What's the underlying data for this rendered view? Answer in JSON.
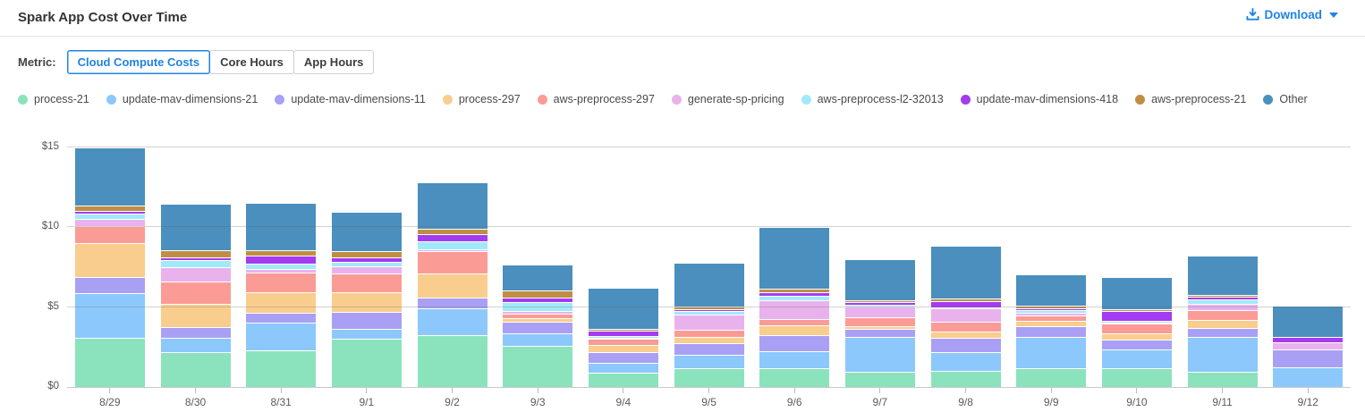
{
  "header": {
    "title": "Spark App Cost Over Time",
    "download_label": "Download"
  },
  "metric": {
    "label": "Metric:",
    "options": [
      {
        "label": "Cloud Compute Costs",
        "selected": true
      },
      {
        "label": "Core Hours",
        "selected": false
      },
      {
        "label": "App Hours",
        "selected": false
      }
    ]
  },
  "colors": {
    "accent": "#2083e4",
    "grid": "#d4d4d4",
    "axis": "#c9c9c9"
  },
  "chart_data": {
    "type": "bar",
    "stacked": true,
    "title": "Spark App Cost Over Time",
    "xlabel": "",
    "ylabel": "",
    "ylim": [
      0,
      15.1
    ],
    "grid": true,
    "legend_position": "top",
    "y_ticks": [
      {
        "value": 0,
        "label": "$0"
      },
      {
        "value": 5,
        "label": "$5"
      },
      {
        "value": 10,
        "label": "$10"
      },
      {
        "value": 15,
        "label": "$15"
      }
    ],
    "categories": [
      "8/29",
      "8/30",
      "8/31",
      "9/1",
      "9/2",
      "9/3",
      "9/4",
      "9/5",
      "9/6",
      "9/7",
      "9/8",
      "9/9",
      "9/10",
      "9/11",
      "9/12"
    ],
    "series": [
      {
        "name": "process-21",
        "color": "#8be3bd",
        "values": [
          3.1,
          2.2,
          2.3,
          3.0,
          3.25,
          2.55,
          0.9,
          1.15,
          1.2,
          0.95,
          1.0,
          1.15,
          1.15,
          0.95,
          0
        ]
      },
      {
        "name": "update-mav-dimensions-21",
        "color": "#8cc8fb",
        "values": [
          2.8,
          0.9,
          1.75,
          0.65,
          1.65,
          0.8,
          0.6,
          0.85,
          1.05,
          2.2,
          1.2,
          2.0,
          1.2,
          2.2,
          1.25
        ]
      },
      {
        "name": "update-mav-dimensions-11",
        "color": "#a9a0f5",
        "values": [
          1.0,
          0.65,
          0.6,
          1.05,
          0.7,
          0.75,
          0.7,
          0.75,
          1.0,
          0.5,
          0.9,
          0.65,
          0.6,
          0.55,
          1.1
        ]
      },
      {
        "name": "process-297",
        "color": "#f9cd8d",
        "values": [
          2.1,
          1.45,
          1.3,
          1.25,
          1.5,
          0.2,
          0.45,
          0.4,
          0.6,
          0.15,
          0.35,
          0.35,
          0.4,
          0.5,
          0
        ]
      },
      {
        "name": "aws-preprocess-297",
        "color": "#fb9b96",
        "values": [
          1.1,
          1.4,
          1.2,
          1.15,
          1.4,
          0.3,
          0.35,
          0.45,
          0.4,
          0.55,
          0.65,
          0.35,
          0.6,
          0.6,
          0
        ]
      },
      {
        "name": "generate-sp-pricing",
        "color": "#e9b2ec",
        "values": [
          0.4,
          0.9,
          0.25,
          0.45,
          0.15,
          0.15,
          0.1,
          0.95,
          1.2,
          0.7,
          0.8,
          0.15,
          0.1,
          0.4,
          0.45
        ]
      },
      {
        "name": "aws-preprocess-l2-32013",
        "color": "#a0e9fa",
        "values": [
          0.35,
          0.45,
          0.3,
          0.3,
          0.45,
          0.55,
          0.1,
          0.2,
          0.25,
          0.1,
          0.1,
          0.15,
          0.1,
          0.3,
          0
        ]
      },
      {
        "name": "update-mav-dimensions-418",
        "color": "#a43bf0",
        "values": [
          0.2,
          0.15,
          0.55,
          0.25,
          0.5,
          0.3,
          0.35,
          0.1,
          0.25,
          0.15,
          0.4,
          0.15,
          0.6,
          0.15,
          0.35
        ]
      },
      {
        "name": "aws-preprocess-21",
        "color": "#bf8e44",
        "values": [
          0.3,
          0.45,
          0.3,
          0.4,
          0.3,
          0.45,
          0.1,
          0.2,
          0.2,
          0.15,
          0.15,
          0.15,
          0.15,
          0.1,
          0
        ]
      },
      {
        "name": "Other",
        "color": "#4a8fbe",
        "values": [
          3.65,
          2.95,
          3.0,
          2.5,
          2.9,
          1.65,
          2.55,
          2.75,
          3.85,
          2.55,
          3.3,
          1.95,
          2.0,
          2.5,
          1.95
        ]
      }
    ]
  }
}
